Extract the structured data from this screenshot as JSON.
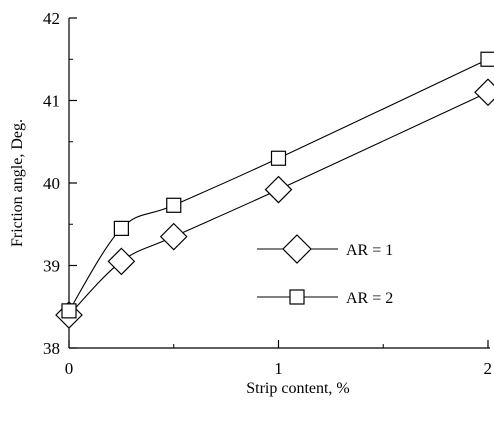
{
  "chart_data": {
    "type": "line",
    "xlabel": "Strip content, %",
    "ylabel": "Friction angle, Deg.",
    "xlim": [
      0,
      2
    ],
    "ylim": [
      38,
      42
    ],
    "x_ticks": [
      "0",
      "1",
      "2"
    ],
    "y_ticks": [
      "38",
      "39",
      "40",
      "41",
      "42"
    ],
    "grid": false,
    "legend_position": "right-middle",
    "series": [
      {
        "name": "AR = 1",
        "marker": "diamond",
        "x": [
          0,
          0.25,
          0.5,
          1,
          2
        ],
        "y": [
          38.4,
          39.05,
          39.35,
          39.92,
          41.1
        ]
      },
      {
        "name": "AR = 2",
        "marker": "square",
        "x": [
          0,
          0.25,
          0.5,
          1,
          2
        ],
        "y": [
          38.45,
          39.45,
          39.73,
          40.3,
          41.5
        ]
      }
    ]
  }
}
